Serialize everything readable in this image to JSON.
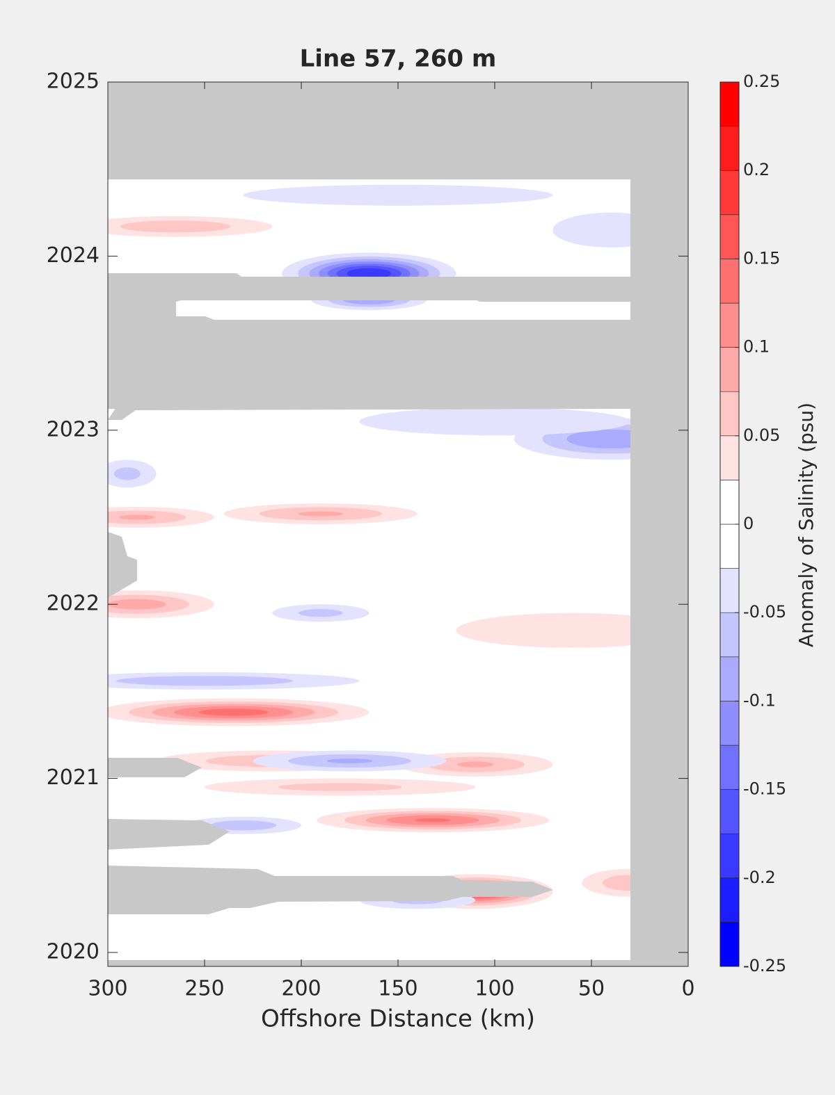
{
  "chart_data": {
    "type": "contour",
    "title": "Line 57, 260 m",
    "x_label": "Offshore Distance (km)",
    "colorbar_label": "Anomaly of Salinity (psu)",
    "xlim": [
      300,
      0
    ],
    "xticks": [
      300,
      250,
      200,
      150,
      100,
      50,
      0
    ],
    "ylim": [
      2019.92,
      2025
    ],
    "yticks": [
      2020,
      2021,
      2022,
      2023,
      2024,
      2025
    ],
    "clim": [
      -0.25,
      0.25
    ],
    "cticks": [
      -0.25,
      -0.2,
      -0.15,
      -0.1,
      -0.05,
      0,
      0.05,
      0.1,
      0.15,
      0.2,
      0.25
    ],
    "levels": [
      -0.25,
      -0.225,
      -0.2,
      -0.175,
      -0.15,
      -0.125,
      -0.1,
      -0.075,
      -0.05,
      -0.025,
      0,
      0.025,
      0.05,
      0.075,
      0.1,
      0.125,
      0.15,
      0.175,
      0.2,
      0.225,
      0.25
    ],
    "features": {
      "x": [
        165,
        165,
        235,
        132,
        110,
        110,
        285,
        190,
        285,
        265,
        215,
        250,
        175,
        40,
        40,
        60,
        230,
        30,
        180,
        190,
        100,
        150,
        290,
        140
      ],
      "y": [
        2023.9,
        2023.75,
        2021.38,
        2020.76,
        2020.35,
        2021.08,
        2022.5,
        2022.52,
        2022.0,
        2024.17,
        2021.1,
        2021.56,
        2021.1,
        2022.95,
        2024.15,
        2021.85,
        2020.73,
        2020.4,
        2020.95,
        2021.95,
        2023.05,
        2024.35,
        2022.75,
        2020.3
      ],
      "values": [
        -0.2,
        -0.1,
        0.14,
        0.13,
        0.18,
        0.08,
        0.08,
        0.08,
        0.09,
        0.07,
        0.07,
        -0.07,
        -0.08,
        -0.1,
        -0.05,
        0.05,
        -0.07,
        0.07,
        0.06,
        -0.06,
        -0.05,
        -0.04,
        -0.06,
        -0.06
      ],
      "dx": [
        45,
        30,
        70,
        60,
        40,
        40,
        40,
        50,
        40,
        50,
        60,
        80,
        50,
        50,
        30,
        60,
        30,
        25,
        70,
        25,
        70,
        80,
        15,
        30
      ],
      "dy": [
        0.12,
        0.06,
        0.08,
        0.07,
        0.1,
        0.07,
        0.06,
        0.06,
        0.08,
        0.06,
        0.06,
        0.05,
        0.06,
        0.12,
        0.1,
        0.1,
        0.05,
        0.08,
        0.05,
        0.05,
        0.08,
        0.06,
        0.08,
        0.05
      ]
    }
  }
}
